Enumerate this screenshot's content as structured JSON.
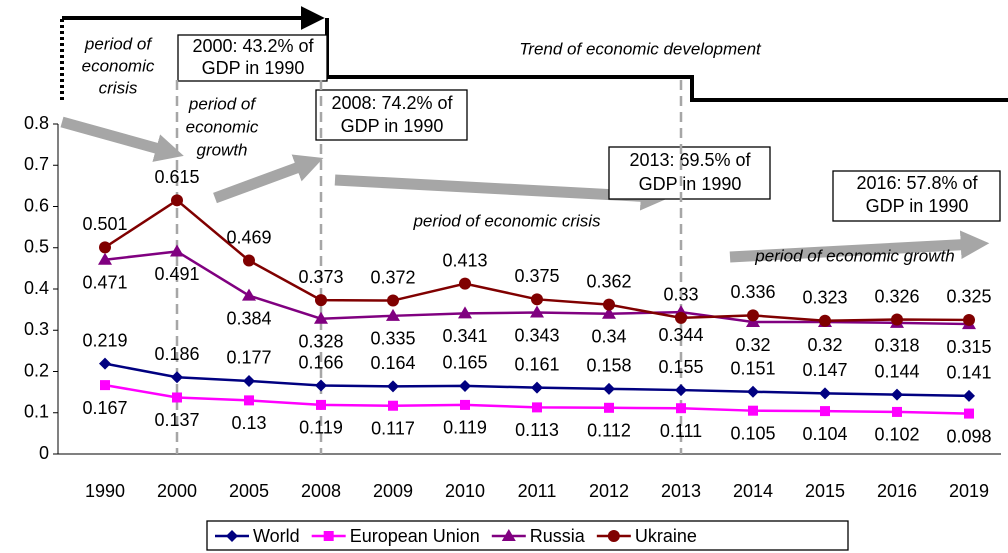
{
  "chart_data": {
    "type": "line",
    "categories": [
      "1990",
      "2000",
      "2005",
      "2008",
      "2009",
      "2010",
      "2011",
      "2012",
      "2013",
      "2014",
      "2015",
      "2016",
      "2019"
    ],
    "series": [
      {
        "name": "World",
        "color": "#000080",
        "marker": "diamond",
        "label_pos": "above",
        "values": [
          0.219,
          0.186,
          0.177,
          0.166,
          0.164,
          0.165,
          0.161,
          0.158,
          0.155,
          0.151,
          0.147,
          0.144,
          0.141
        ]
      },
      {
        "name": "European Union",
        "color": "#ff00ff",
        "marker": "square",
        "label_pos": "below",
        "values": [
          0.167,
          0.137,
          0.13,
          0.119,
          0.117,
          0.119,
          0.113,
          0.112,
          0.111,
          0.105,
          0.104,
          0.102,
          0.098
        ]
      },
      {
        "name": "Russia",
        "color": "#800080",
        "marker": "triangle",
        "label_pos": "below",
        "values": [
          0.471,
          0.491,
          0.384,
          0.328,
          0.335,
          0.341,
          0.343,
          0.34,
          0.344,
          0.32,
          0.32,
          0.318,
          0.315
        ]
      },
      {
        "name": "Ukraine",
        "color": "#800000",
        "marker": "circle",
        "label_pos": "above",
        "values": [
          0.501,
          0.615,
          0.469,
          0.373,
          0.372,
          0.413,
          0.375,
          0.362,
          0.33,
          0.336,
          0.323,
          0.326,
          0.325
        ]
      }
    ],
    "ylim": [
      0,
      0.8
    ],
    "yticks": [
      0,
      0.1,
      0.2,
      0.3,
      0.4,
      0.5,
      0.6,
      0.7,
      0.8
    ],
    "legend": "bottom",
    "annotations": {
      "trend": "Trend of economic development",
      "crisis_1": [
        "period of",
        "economic",
        "crisis"
      ],
      "growth_1": [
        "period of",
        "economic",
        "growth"
      ],
      "crisis_2": "period of economic crisis",
      "growth_2": "period of economic growth",
      "box_2000": [
        "2000: 43.2% of",
        "GDP in 1990"
      ],
      "box_2008": [
        "2008: 74.2% of",
        "GDP in 1990"
      ],
      "box_2013": [
        "2013: 69.5% of",
        "GDP in 1990"
      ],
      "box_2016": [
        "2016: 57.8% of",
        "GDP in 1990"
      ]
    }
  }
}
